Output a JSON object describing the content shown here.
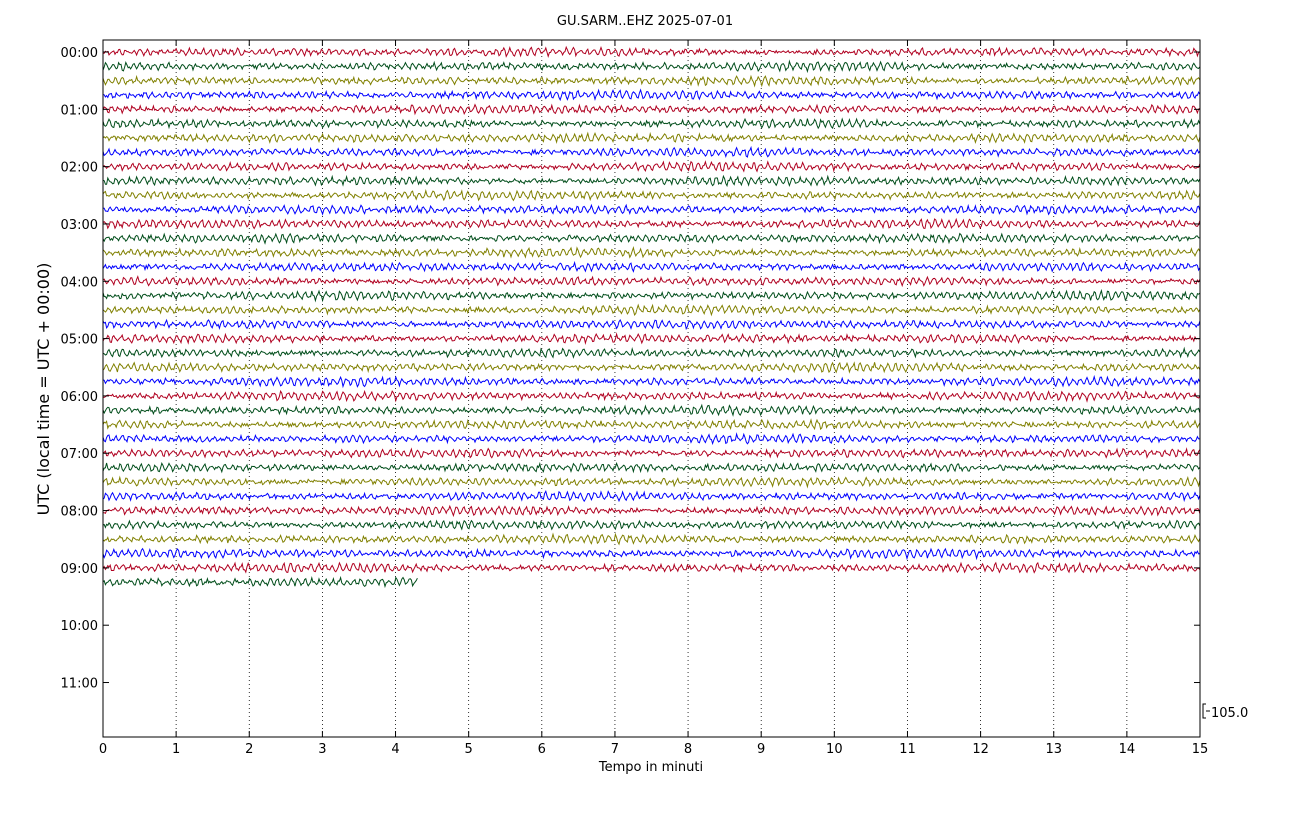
{
  "chart_data": {
    "type": "line",
    "title": "GU.SARM..EHZ 2025-07-01",
    "xlabel": "Tempo in minuti",
    "ylabel": "UTC (local time = UTC + 00:00)",
    "xlim": [
      0,
      15
    ],
    "x_ticks": [
      "0",
      "1",
      "2",
      "3",
      "4",
      "5",
      "6",
      "7",
      "8",
      "9",
      "10",
      "11",
      "12",
      "13",
      "14",
      "15"
    ],
    "y_ticks": [
      "00:00",
      "01:00",
      "02:00",
      "03:00",
      "04:00",
      "05:00",
      "06:00",
      "07:00",
      "08:00",
      "09:00",
      "10:00",
      "11:00"
    ],
    "trace_interval_minutes": 15,
    "trace_colors": [
      "#b00020",
      "#004d1a",
      "#808000",
      "#0000ff"
    ],
    "traces_shown": 38,
    "last_trace_end_minute": 4.3,
    "scale_label": "105.0",
    "grid": "vertical dotted at each minute"
  }
}
